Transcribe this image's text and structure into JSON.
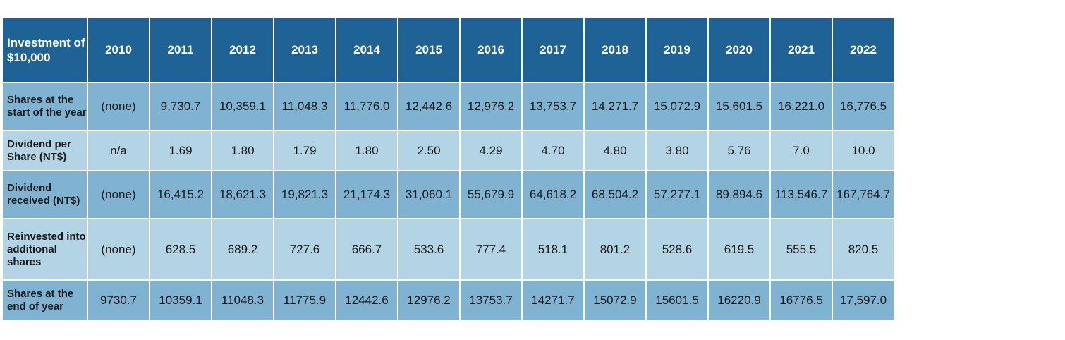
{
  "table": {
    "corner": "Investment of $10,000",
    "years": [
      "2010",
      "2011",
      "2012",
      "2013",
      "2014",
      "2015",
      "2016",
      "2017",
      "2018",
      "2019",
      "2020",
      "2021",
      "2022"
    ],
    "rows": [
      {
        "label": "Shares at the start of the year",
        "values": [
          "(none)",
          "9,730.7",
          "10,359.1",
          "11,048.3",
          "11,776.0",
          "12,442.6",
          "12,976.2",
          "13,753.7",
          "14,271.7",
          "15,072.9",
          "15,601.5",
          "16,221.0",
          "16,776.5"
        ]
      },
      {
        "label": "Dividend per Share (NT$)",
        "values": [
          "n/a",
          "1.69",
          "1.80",
          "1.79",
          "1.80",
          "2.50",
          "4.29",
          "4.70",
          "4.80",
          "3.80",
          "5.76",
          "7.0",
          "10.0"
        ]
      },
      {
        "label": "Dividend received (NT$)",
        "values": [
          "(none)",
          "16,415.2",
          "18,621.3",
          "19,821.3",
          "21,174.3",
          "31,060.1",
          "55,679.9",
          "64,618.2",
          "68,504.2",
          "57,277.1",
          "89,894.6",
          "113,546.7",
          "167,764.7"
        ]
      },
      {
        "label": "Reinvested into additional shares",
        "values": [
          "(none)",
          "628.5",
          "689.2",
          "727.6",
          "666.7",
          "533.6",
          "777.4",
          "518.1",
          "801.2",
          "528.6",
          "619.5",
          "555.5",
          "820.5"
        ]
      },
      {
        "label": "Shares at the end of year",
        "values": [
          "9730.7",
          "10359.1",
          "11048.3",
          "11775.9",
          "12442.6",
          "12976.2",
          "13753.7",
          "14271.7",
          "15072.9",
          "15601.5",
          "16220.9",
          "16776.5",
          "17,597.0"
        ]
      }
    ]
  }
}
